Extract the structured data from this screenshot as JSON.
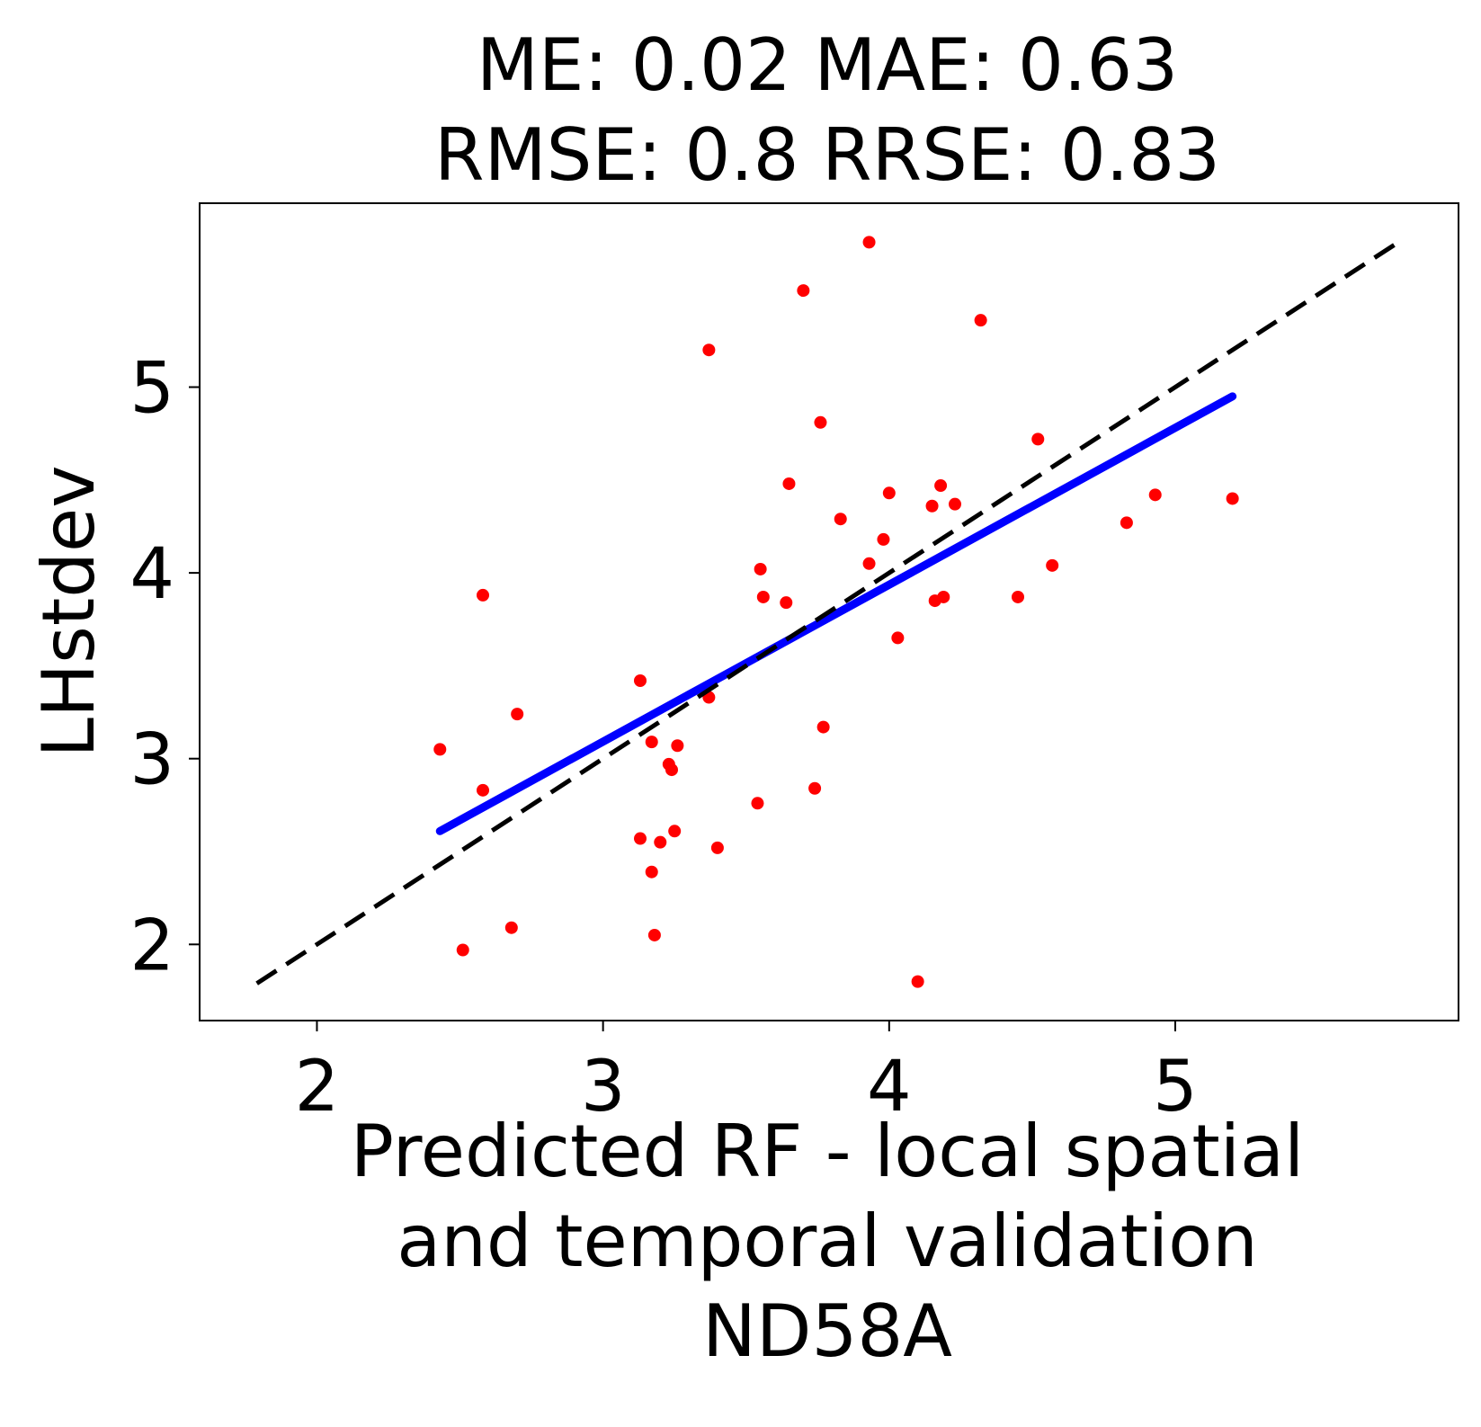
{
  "chart_data": {
    "type": "scatter",
    "title_lines": [
      "ME: 0.02 MAE: 0.63",
      "RMSE: 0.8 RRSE: 0.83"
    ],
    "xlabel_lines": [
      "Predicted RF - local spatial",
      "and temporal validation",
      "ND58A"
    ],
    "ylabel": "LHstdev",
    "xlim": [
      1.59,
      5.99
    ],
    "ylim": [
      1.59,
      5.99
    ],
    "xticks": [
      2,
      3,
      4,
      5
    ],
    "yticks": [
      2,
      3,
      4,
      5
    ],
    "grid": false,
    "series": [
      {
        "kind": "points",
        "color": "#ff0000",
        "x": [
          2.43,
          2.51,
          2.58,
          2.58,
          2.68,
          2.7,
          3.13,
          3.13,
          3.17,
          3.17,
          3.18,
          3.2,
          3.23,
          3.24,
          3.25,
          3.26,
          3.37,
          3.37,
          3.4,
          3.54,
          3.55,
          3.56,
          3.64,
          3.65,
          3.7,
          3.74,
          3.76,
          3.77,
          3.83,
          3.93,
          3.93,
          3.98,
          4.0,
          4.03,
          4.1,
          4.15,
          4.16,
          4.18,
          4.19,
          4.23,
          4.32,
          4.45,
          4.52,
          4.57,
          4.83,
          4.93,
          5.2
        ],
        "y": [
          3.05,
          1.97,
          2.83,
          3.88,
          2.09,
          3.24,
          3.42,
          2.57,
          2.39,
          3.09,
          2.05,
          2.55,
          2.97,
          2.94,
          2.61,
          3.07,
          5.2,
          3.33,
          2.52,
          2.76,
          4.02,
          3.87,
          3.84,
          4.48,
          5.52,
          2.84,
          4.81,
          3.17,
          4.29,
          5.78,
          4.05,
          4.18,
          4.43,
          3.65,
          1.8,
          4.36,
          3.85,
          4.47,
          3.87,
          4.37,
          5.36,
          3.87,
          4.72,
          4.04,
          4.27,
          4.42,
          4.4
        ]
      },
      {
        "kind": "fit-line",
        "color": "#0000ff",
        "x": [
          2.43,
          5.2
        ],
        "y": [
          2.61,
          4.95
        ]
      },
      {
        "kind": "identity-line",
        "color": "#000000",
        "style": "dashed",
        "x": [
          1.79,
          5.79
        ],
        "y": [
          1.79,
          5.79
        ]
      }
    ]
  }
}
